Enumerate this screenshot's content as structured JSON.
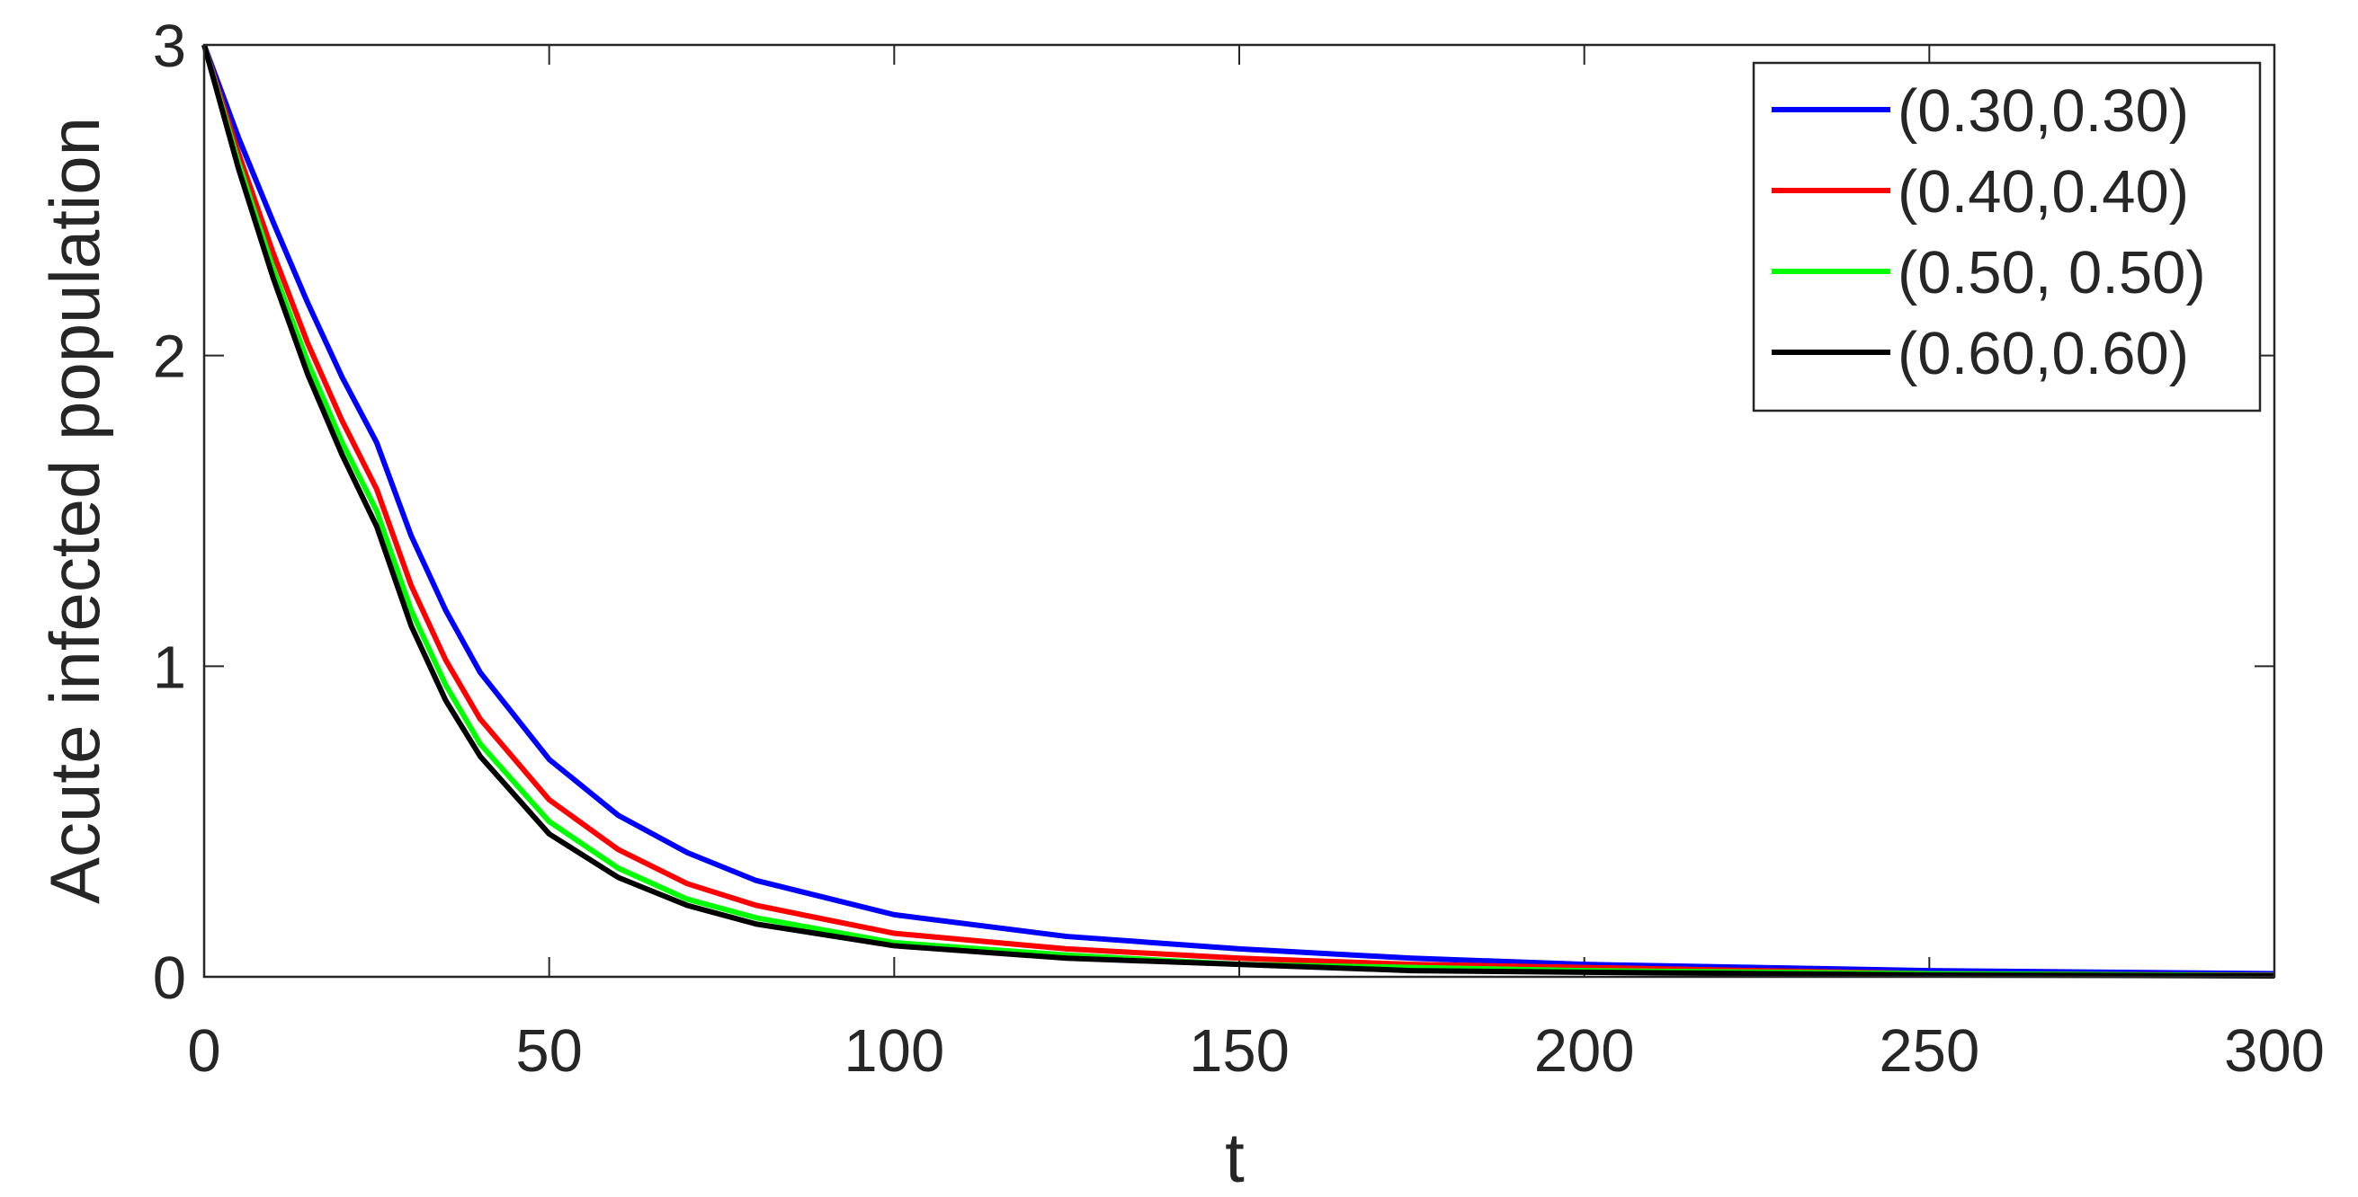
{
  "chart_data": {
    "type": "line",
    "x_label": "t",
    "y_label": "Acute infected population",
    "x": [
      0,
      5,
      10,
      15,
      20,
      25,
      30,
      35,
      40,
      50,
      60,
      70,
      80,
      100,
      125,
      150,
      175,
      200,
      250,
      300
    ],
    "series": [
      {
        "name": "(0.30,0.30)",
        "color": "#0000ff",
        "values": [
          3,
          2.7,
          2.43,
          2.17,
          1.93,
          1.72,
          1.42,
          1.18,
          0.98,
          0.7,
          0.52,
          0.4,
          0.31,
          0.2,
          0.13,
          0.09,
          0.06,
          0.04,
          0.02,
          0.01
        ]
      },
      {
        "name": "(0.40,0.40)",
        "color": "#ff0000",
        "values": [
          3,
          2.65,
          2.33,
          2.04,
          1.79,
          1.57,
          1.26,
          1.02,
          0.83,
          0.57,
          0.41,
          0.3,
          0.23,
          0.14,
          0.09,
          0.06,
          0.04,
          0.03,
          0.01,
          0.005
        ]
      },
      {
        "name": "(0.50, 0.50)",
        "color": "#00ff00",
        "values": [
          3,
          2.62,
          2.28,
          1.98,
          1.72,
          1.5,
          1.18,
          0.94,
          0.75,
          0.5,
          0.35,
          0.25,
          0.19,
          0.11,
          0.07,
          0.04,
          0.03,
          0.02,
          0.01,
          0.004
        ]
      },
      {
        "name": "(0.60,0.60)",
        "color": "#000000",
        "values": [
          3,
          2.6,
          2.25,
          1.94,
          1.68,
          1.45,
          1.13,
          0.89,
          0.71,
          0.46,
          0.32,
          0.23,
          0.17,
          0.1,
          0.06,
          0.04,
          0.02,
          0.015,
          0.006,
          0.003
        ]
      }
    ],
    "xlim": [
      0,
      300
    ],
    "xticks": [
      0,
      50,
      100,
      150,
      200,
      250,
      300
    ],
    "ylim": [
      0,
      3
    ],
    "yticks": [
      0,
      1,
      2,
      3
    ],
    "legend": "top-right"
  }
}
